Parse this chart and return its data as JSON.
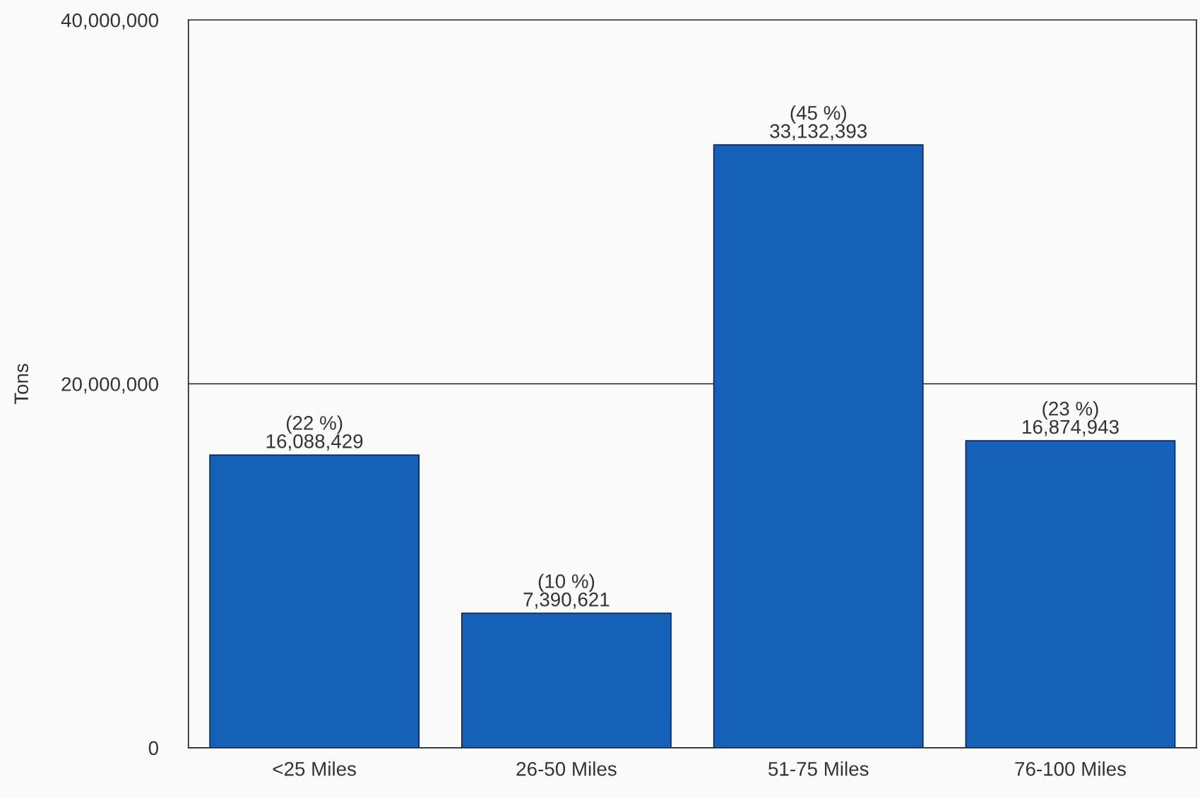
{
  "chart_data": {
    "type": "bar",
    "ylabel": "Tons",
    "categories": [
      "<25 Miles",
      "26-50 Miles",
      "51-75 Miles",
      "76-100 Miles"
    ],
    "values": [
      16088429,
      7390621,
      33132393,
      16874943
    ],
    "value_labels": [
      "(22 %)\n16,088,429",
      "(10 %)\n7,390,621",
      "(45 %)\n33,132,393",
      "(23 %)\n16,874,943"
    ],
    "color": "#1560b8",
    "ylim": [
      0,
      40000000
    ],
    "yticks": [
      {
        "value": 0,
        "label": "0"
      },
      {
        "value": 20000000,
        "label": "20,000,000"
      },
      {
        "value": 40000000,
        "label": "40,000,000"
      }
    ],
    "grid": "y"
  }
}
